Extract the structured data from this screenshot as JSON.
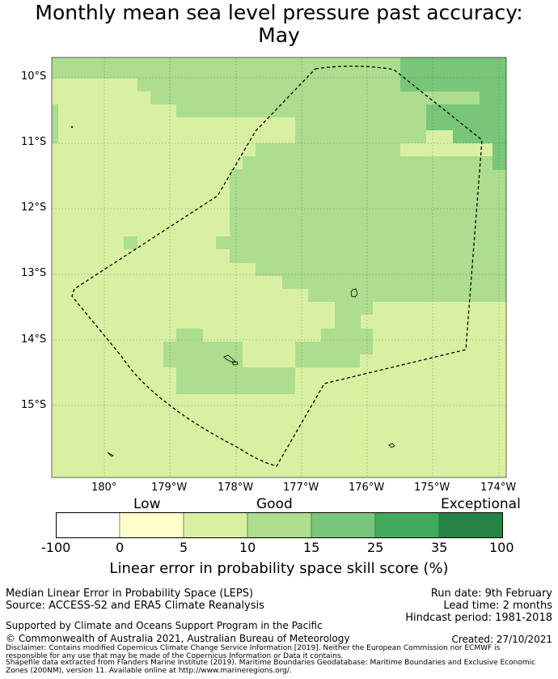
{
  "title": {
    "line1": "Monthly mean sea level pressure past accuracy:",
    "line2": "May"
  },
  "map": {
    "lat_labels": [
      "10°S",
      "11°S",
      "12°S",
      "13°S",
      "14°S",
      "15°S"
    ],
    "lon_labels": [
      "180°",
      "179°W",
      "178°W",
      "177°W",
      "176°W",
      "175°W",
      "174°W"
    ]
  },
  "colorbar": {
    "category_labels": [
      "Low",
      "Good",
      "Exceptional"
    ],
    "ticks": [
      "-100",
      "0",
      "5",
      "10",
      "15",
      "25",
      "35",
      "100"
    ],
    "colors": [
      "#ffffff",
      "#ffffcc",
      "#d9f0a3",
      "#addd8e",
      "#78c679",
      "#41ab5d",
      "#238443"
    ],
    "label": "Linear error in probability space skill score (%)"
  },
  "footer": {
    "left": [
      "Median Linear Error in Probability Space (LEPS)",
      "Source: ACCESS-S2 and ERA5 Climate Reanalysis"
    ],
    "right": [
      "Run date: 9th February",
      "Lead time: 2 months",
      "Hindcast period: 1981-2018"
    ],
    "support": "Supported by Climate and Oceans Support Program in the Pacific",
    "copyright": "© Commonwealth of Australia 2021, Australian Bureau of Meteorology",
    "created": "Created: 27/10/2021",
    "disclaimer": "Disclaimer: Contains modified Copernicus Climate Change Service Information [2019]. Neither the European Commission nor ECMWF is responsible for any use that may be made of the Copernicus Information or Data it contains.",
    "shapefile": "Shapefile data extracted from Flanders Marine Institute (2019). Maritime Boundaries Geodatabase: Maritime Boundaries and Exclusive Economic Zones (200NM), version 11. Available online at http://www.marineregions.org/."
  }
}
